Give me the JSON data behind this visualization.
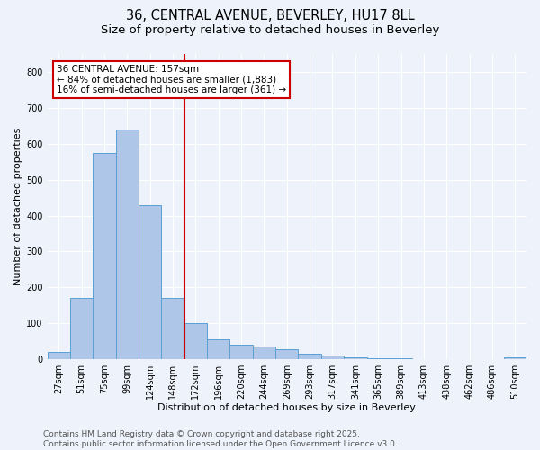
{
  "title1": "36, CENTRAL AVENUE, BEVERLEY, HU17 8LL",
  "title2": "Size of property relative to detached houses in Beverley",
  "xlabel": "Distribution of detached houses by size in Beverley",
  "ylabel": "Number of detached properties",
  "categories": [
    "27sqm",
    "51sqm",
    "75sqm",
    "99sqm",
    "124sqm",
    "148sqm",
    "172sqm",
    "196sqm",
    "220sqm",
    "244sqm",
    "269sqm",
    "293sqm",
    "317sqm",
    "341sqm",
    "365sqm",
    "389sqm",
    "413sqm",
    "438sqm",
    "462sqm",
    "486sqm",
    "510sqm"
  ],
  "values": [
    20,
    170,
    575,
    640,
    430,
    170,
    100,
    55,
    40,
    35,
    28,
    15,
    10,
    5,
    3,
    2,
    1,
    1,
    1,
    0,
    5
  ],
  "bar_color": "#aec6e8",
  "bar_edge_color": "#5a9fd4",
  "vline_x": 5.5,
  "vline_color": "#cc0000",
  "annotation_text": "36 CENTRAL AVENUE: 157sqm\n← 84% of detached houses are smaller (1,883)\n16% of semi-detached houses are larger (361) →",
  "annotation_box_color": "#ffffff",
  "annotation_box_edge": "#cc0000",
  "ylim": [
    0,
    850
  ],
  "yticks": [
    0,
    100,
    200,
    300,
    400,
    500,
    600,
    700,
    800
  ],
  "background_color": "#eef2fb",
  "grid_color": "#ffffff",
  "footer_text": "Contains HM Land Registry data © Crown copyright and database right 2025.\nContains public sector information licensed under the Open Government Licence v3.0.",
  "title_fontsize": 10.5,
  "subtitle_fontsize": 9.5,
  "axis_label_fontsize": 8,
  "tick_fontsize": 7,
  "annotation_fontsize": 7.5,
  "footer_fontsize": 6.5
}
